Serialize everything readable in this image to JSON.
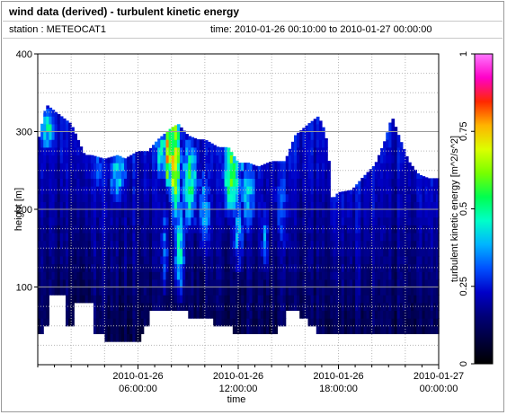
{
  "header": {
    "title": "wind data (derived) - turbulent kinetic energy",
    "station": "station : METEOCAT1",
    "time_range": "time: 2010-01-26 00:10:00 to 2010-01-27 00:00:00"
  },
  "colors": {
    "background_fill": "#000000",
    "grid": "#8c8c8c",
    "colormap": [
      "#000000",
      "#00003c",
      "#000078",
      "#0000c8",
      "#0050ff",
      "#00b4ff",
      "#00ffc8",
      "#00ff50",
      "#78ff00",
      "#dcff00",
      "#ffb400",
      "#ff2800",
      "#ff00c8",
      "#ff78ff"
    ]
  },
  "chart_data": {
    "type": "heatmap",
    "xlabel": "time",
    "ylabel": "height [m]",
    "xlim": [
      0,
      24
    ],
    "ylim": [
      0,
      400
    ],
    "x_ticks": [
      {
        "value": 6,
        "line1": "2010-01-26",
        "line2": "06:00:00"
      },
      {
        "value": 12,
        "line1": "2010-01-26",
        "line2": "12:00:00"
      },
      {
        "value": 18,
        "line1": "2010-01-26",
        "line2": "18:00:00"
      },
      {
        "value": 24,
        "line1": "2010-01-27",
        "line2": "00:00:00"
      }
    ],
    "y_ticks": [
      100,
      200,
      300,
      400
    ],
    "colorbar": {
      "label": "turbulent kinetic energy [m^2/s^2]",
      "range": [
        0,
        1
      ],
      "ticks": [
        "0",
        "0.25",
        "0.5",
        "0.75",
        "1"
      ]
    },
    "height_profile": [
      [
        0,
        40,
        285
      ],
      [
        0.5,
        55,
        335
      ],
      [
        2.0,
        55,
        310
      ],
      [
        2.8,
        55,
        270
      ],
      [
        3.2,
        40,
        270
      ],
      [
        4.0,
        40,
        265
      ],
      [
        4.8,
        35,
        270
      ],
      [
        5.2,
        35,
        265
      ],
      [
        6.0,
        35,
        275
      ],
      [
        6.6,
        60,
        275
      ],
      [
        7.2,
        70,
        290
      ],
      [
        8.0,
        75,
        305
      ],
      [
        8.4,
        75,
        310
      ],
      [
        9.0,
        70,
        295
      ],
      [
        9.6,
        60,
        290
      ],
      [
        10.0,
        60,
        290
      ],
      [
        10.8,
        50,
        280
      ],
      [
        11.4,
        50,
        280
      ],
      [
        12.0,
        45,
        260
      ],
      [
        12.6,
        45,
        260
      ],
      [
        13.2,
        40,
        255
      ],
      [
        14.0,
        40,
        262
      ],
      [
        14.8,
        60,
        262
      ],
      [
        15.4,
        60,
        295
      ],
      [
        16.2,
        60,
        310
      ],
      [
        16.8,
        40,
        320
      ],
      [
        17.2,
        40,
        300
      ],
      [
        17.4,
        40,
        268
      ],
      [
        17.6,
        40,
        212
      ],
      [
        18.0,
        40,
        222
      ],
      [
        18.8,
        40,
        225
      ],
      [
        19.4,
        40,
        240
      ],
      [
        20.2,
        40,
        258
      ],
      [
        20.8,
        40,
        290
      ],
      [
        21.2,
        40,
        320
      ],
      [
        21.6,
        40,
        295
      ],
      [
        22.2,
        40,
        262
      ],
      [
        22.8,
        40,
        245
      ],
      [
        23.4,
        40,
        240
      ],
      [
        24.0,
        40,
        240
      ]
    ],
    "gaps": [
      {
        "start": 0.7,
        "end": 1.6,
        "top": 95
      },
      {
        "start": 2.2,
        "end": 3.3,
        "top": 80
      },
      {
        "start": 6.7,
        "end": 7.1,
        "top": 72
      },
      {
        "start": 9.4,
        "end": 10.5,
        "top": 65
      },
      {
        "start": 11.2,
        "end": 11.7,
        "top": 55
      },
      {
        "start": 14.8,
        "end": 15.6,
        "top": 72
      },
      {
        "start": 15.8,
        "end": 16.6,
        "top": 55
      },
      {
        "start": 16.7,
        "end": 17.0,
        "top": 42
      }
    ],
    "hot_spots": [
      {
        "t": 0.6,
        "h": 300,
        "v": 0.45,
        "wt": 0.6,
        "wh": 35
      },
      {
        "t": 3.6,
        "h": 250,
        "v": 0.33,
        "wt": 0.4,
        "wh": 40
      },
      {
        "t": 4.8,
        "h": 240,
        "v": 0.42,
        "wt": 0.7,
        "wh": 45
      },
      {
        "t": 7.4,
        "h": 270,
        "v": 0.45,
        "wt": 0.5,
        "wh": 50
      },
      {
        "t": 7.6,
        "h": 150,
        "v": 0.32,
        "wt": 0.3,
        "wh": 80
      },
      {
        "t": 7.8,
        "h": 270,
        "v": 0.82,
        "wt": 0.25,
        "wh": 50
      },
      {
        "t": 8.2,
        "h": 260,
        "v": 0.72,
        "wt": 0.4,
        "wh": 80
      },
      {
        "t": 8.5,
        "h": 150,
        "v": 0.45,
        "wt": 0.4,
        "wh": 80
      },
      {
        "t": 9.1,
        "h": 230,
        "v": 0.5,
        "wt": 0.6,
        "wh": 70
      },
      {
        "t": 10.0,
        "h": 200,
        "v": 0.35,
        "wt": 0.6,
        "wh": 80
      },
      {
        "t": 11.6,
        "h": 240,
        "v": 0.58,
        "wt": 0.6,
        "wh": 60
      },
      {
        "t": 12.0,
        "h": 170,
        "v": 0.35,
        "wt": 0.5,
        "wh": 70
      },
      {
        "t": 12.2,
        "h": 265,
        "v": 0.75,
        "wt": 0.25,
        "wh": 20
      },
      {
        "t": 12.6,
        "h": 220,
        "v": 0.4,
        "wt": 0.6,
        "wh": 70
      },
      {
        "t": 13.6,
        "h": 160,
        "v": 0.33,
        "wt": 0.3,
        "wh": 60
      },
      {
        "t": 14.6,
        "h": 200,
        "v": 0.3,
        "wt": 0.6,
        "wh": 90
      },
      {
        "t": 20.9,
        "h": 290,
        "v": 0.3,
        "wt": 0.3,
        "wh": 15
      }
    ]
  }
}
